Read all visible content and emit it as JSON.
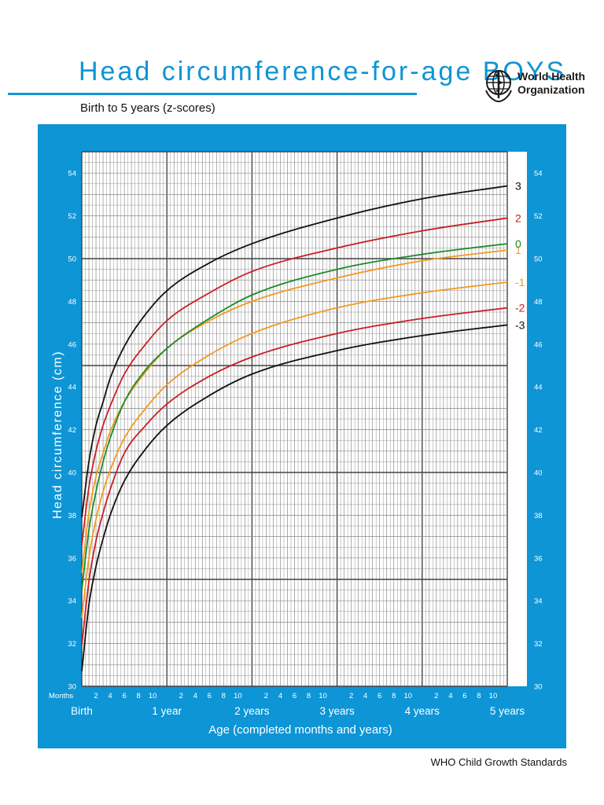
{
  "header": {
    "title": "Head circumference-for-age  BOYS",
    "subtitle": "Birth to 5 years (z-scores)",
    "logo_line1": "World Health",
    "logo_line2": "Organization"
  },
  "footer": {
    "text": "WHO Child Growth Standards"
  },
  "colors": {
    "panel": "#0d95d6",
    "grid_minor": "#8a8a8a",
    "grid_major": "#444444",
    "black": "#111111",
    "red": "#c62026",
    "orange": "#f39a1f",
    "green": "#1c8a2c"
  },
  "chart_data": {
    "type": "line",
    "ylabel": "Head circumference (cm)",
    "xlabel": "Age (completed months and years)",
    "months_label": "Months",
    "grid": true,
    "xlim": [
      0,
      60
    ],
    "ylim": [
      30,
      55
    ],
    "x_month_ticks": [
      2,
      4,
      6,
      8,
      10
    ],
    "x_year_labels": [
      {
        "month": 0,
        "label": "Birth"
      },
      {
        "month": 12,
        "label": "1 year"
      },
      {
        "month": 24,
        "label": "2 years"
      },
      {
        "month": 36,
        "label": "3 years"
      },
      {
        "month": 48,
        "label": "4 years"
      },
      {
        "month": 60,
        "label": "5 years"
      }
    ],
    "y_ticks": [
      30,
      32,
      34,
      36,
      38,
      40,
      42,
      44,
      46,
      48,
      50,
      52,
      54
    ],
    "x": [
      0,
      1,
      2,
      3,
      4,
      6,
      9,
      12,
      18,
      24,
      36,
      48,
      60
    ],
    "series": [
      {
        "name": "3",
        "color": "#111111",
        "values": [
          37.9,
          40.5,
          42.2,
          43.3,
          44.4,
          45.9,
          47.4,
          48.5,
          49.8,
          50.7,
          51.9,
          52.8,
          53.4
        ]
      },
      {
        "name": "2",
        "color": "#c62026",
        "values": [
          36.6,
          39.3,
          41.0,
          42.2,
          43.1,
          44.6,
          46.0,
          47.1,
          48.4,
          49.4,
          50.5,
          51.3,
          51.9
        ]
      },
      {
        "name": "1",
        "color": "#f39a1f",
        "values": [
          35.3,
          38.1,
          39.8,
          40.9,
          41.9,
          43.3,
          44.7,
          45.8,
          47.1,
          48.0,
          49.1,
          49.9,
          50.4
        ]
      },
      {
        "name": "0",
        "color": "#1c8a2c",
        "values": [
          34.5,
          37.3,
          39.1,
          40.5,
          41.6,
          43.3,
          44.8,
          45.8,
          47.2,
          48.3,
          49.5,
          50.2,
          50.7
        ]
      },
      {
        "name": "-1",
        "color": "#f39a1f",
        "values": [
          33.2,
          36.0,
          37.8,
          39.1,
          40.1,
          41.6,
          43.0,
          44.1,
          45.5,
          46.5,
          47.7,
          48.4,
          48.9
        ]
      },
      {
        "name": "-2",
        "color": "#c62026",
        "values": [
          31.9,
          34.9,
          36.8,
          38.1,
          39.2,
          40.9,
          42.2,
          43.2,
          44.5,
          45.4,
          46.5,
          47.2,
          47.7
        ]
      },
      {
        "name": "-3",
        "color": "#111111",
        "values": [
          30.7,
          33.8,
          35.6,
          36.9,
          38.0,
          39.6,
          41.1,
          42.2,
          43.6,
          44.6,
          45.7,
          46.4,
          46.9
        ]
      }
    ]
  }
}
